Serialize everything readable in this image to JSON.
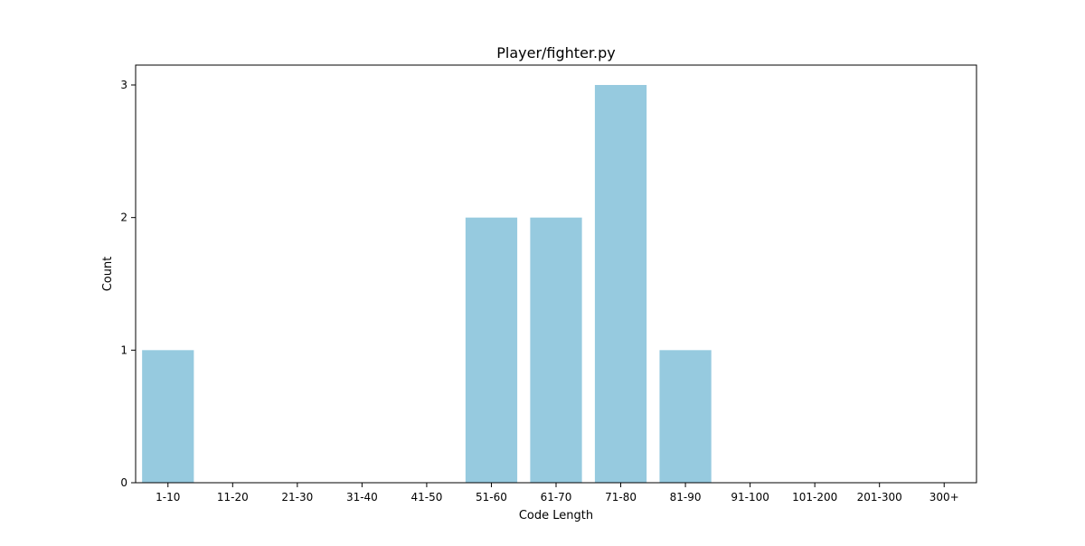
{
  "chart_data": {
    "type": "bar",
    "title": "Player/fighter.py",
    "xlabel": "Code Length",
    "ylabel": "Count",
    "categories": [
      "1-10",
      "11-20",
      "21-30",
      "31-40",
      "41-50",
      "51-60",
      "61-70",
      "71-80",
      "81-90",
      "91-100",
      "101-200",
      "201-300",
      "300+"
    ],
    "values": [
      1,
      0,
      0,
      0,
      0,
      2,
      2,
      3,
      1,
      0,
      0,
      0,
      0
    ],
    "ylim": [
      0,
      3.15
    ],
    "yticks": [
      0,
      1,
      2,
      3
    ],
    "grid": false,
    "bar_color": "#96cadf"
  }
}
